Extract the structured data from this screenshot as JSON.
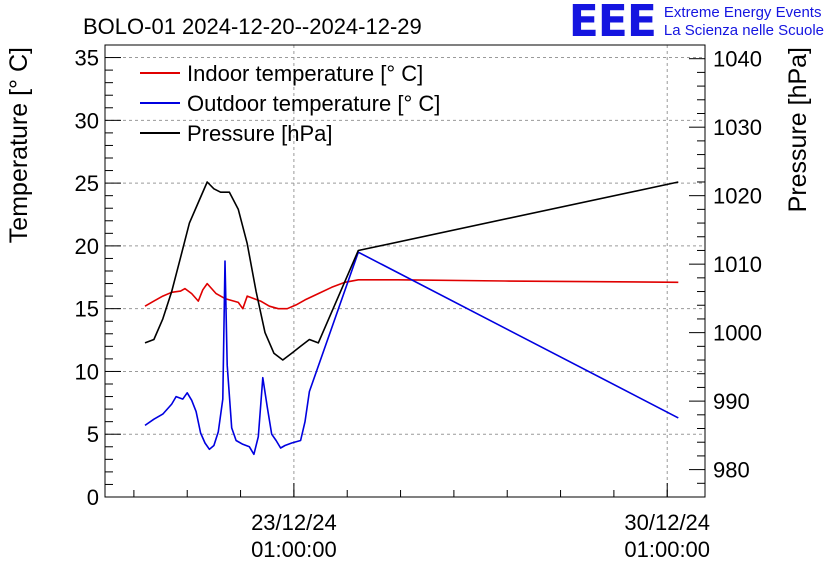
{
  "brand": {
    "logo": "EEE",
    "line1": "Extreme Energy Events",
    "line2": "La Scienza nelle Scuole",
    "color": "#1515e0"
  },
  "chart_data": {
    "type": "line",
    "title": "BOLO-01 2024-12-20--2024-12-29",
    "ylabel": "Temperature [° C]",
    "y2label": "Pressure [hPa]",
    "ylim": [
      0,
      36
    ],
    "y2lim": [
      976,
      1042
    ],
    "yticks": [
      0,
      5,
      10,
      15,
      20,
      25,
      30,
      35
    ],
    "y2ticks": [
      980,
      990,
      1000,
      1010,
      1020,
      1030,
      1040
    ],
    "xlim": [
      "2024-12-19T12:00",
      "2024-12-30T18:00"
    ],
    "xticks": [
      {
        "x": "2024-12-23T01:00",
        "date": "23/12/24",
        "time": "01:00:00"
      },
      {
        "x": "2024-12-30T01:00",
        "date": "30/12/24",
        "time": "01:00:00"
      }
    ],
    "grid": true,
    "legend_position": "top-left",
    "series": [
      {
        "name": "Indoor temperature [° C]",
        "axis": "left",
        "color": "#e00000",
        "points": [
          [
            "2024-12-20T06:00",
            15.2
          ],
          [
            "2024-12-20T10:00",
            15.6
          ],
          [
            "2024-12-20T14:00",
            16.0
          ],
          [
            "2024-12-20T18:00",
            16.3
          ],
          [
            "2024-12-20T22:00",
            16.4
          ],
          [
            "2024-12-21T00:00",
            16.6
          ],
          [
            "2024-12-21T03:00",
            16.2
          ],
          [
            "2024-12-21T06:00",
            15.6
          ],
          [
            "2024-12-21T08:00",
            16.5
          ],
          [
            "2024-12-21T10:00",
            17.0
          ],
          [
            "2024-12-21T14:00",
            16.2
          ],
          [
            "2024-12-21T18:00",
            15.8
          ],
          [
            "2024-12-21T22:00",
            15.6
          ],
          [
            "2024-12-22T00:00",
            15.5
          ],
          [
            "2024-12-22T02:00",
            15.0
          ],
          [
            "2024-12-22T04:00",
            16.0
          ],
          [
            "2024-12-22T07:00",
            15.8
          ],
          [
            "2024-12-22T10:00",
            15.6
          ],
          [
            "2024-12-22T14:00",
            15.2
          ],
          [
            "2024-12-22T18:00",
            15.0
          ],
          [
            "2024-12-22T22:00",
            15.0
          ],
          [
            "2024-12-23T02:00",
            15.3
          ],
          [
            "2024-12-23T06:00",
            15.7
          ],
          [
            "2024-12-23T12:00",
            16.2
          ],
          [
            "2024-12-23T18:00",
            16.7
          ],
          [
            "2024-12-24T00:00",
            17.1
          ],
          [
            "2024-12-24T06:00",
            17.3
          ],
          [
            "2024-12-25T00:00",
            17.3
          ],
          [
            "2024-12-27T00:00",
            17.2
          ],
          [
            "2024-12-30T06:00",
            17.1
          ]
        ]
      },
      {
        "name": "Outdoor temperature [° C]",
        "axis": "left",
        "color": "#0000e0",
        "points": [
          [
            "2024-12-20T06:00",
            5.7
          ],
          [
            "2024-12-20T10:00",
            6.2
          ],
          [
            "2024-12-20T14:00",
            6.6
          ],
          [
            "2024-12-20T18:00",
            7.4
          ],
          [
            "2024-12-20T20:00",
            8.0
          ],
          [
            "2024-12-20T23:00",
            7.8
          ],
          [
            "2024-12-21T01:00",
            8.3
          ],
          [
            "2024-12-21T03:00",
            7.7
          ],
          [
            "2024-12-21T05:00",
            6.8
          ],
          [
            "2024-12-21T07:00",
            5.1
          ],
          [
            "2024-12-21T09:00",
            4.3
          ],
          [
            "2024-12-21T11:00",
            3.8
          ],
          [
            "2024-12-21T13:00",
            4.1
          ],
          [
            "2024-12-21T15:00",
            5.2
          ],
          [
            "2024-12-21T17:00",
            7.8
          ],
          [
            "2024-12-21T18:00",
            18.8
          ],
          [
            "2024-12-21T19:00",
            10.5
          ],
          [
            "2024-12-21T21:00",
            5.5
          ],
          [
            "2024-12-21T23:00",
            4.5
          ],
          [
            "2024-12-22T02:00",
            4.2
          ],
          [
            "2024-12-22T05:00",
            4.0
          ],
          [
            "2024-12-22T07:00",
            3.4
          ],
          [
            "2024-12-22T09:00",
            4.8
          ],
          [
            "2024-12-22T11:00",
            9.5
          ],
          [
            "2024-12-22T13:00",
            7.2
          ],
          [
            "2024-12-22T15:00",
            5.0
          ],
          [
            "2024-12-22T17:00",
            4.5
          ],
          [
            "2024-12-22T19:00",
            3.9
          ],
          [
            "2024-12-22T21:00",
            4.1
          ],
          [
            "2024-12-23T00:00",
            4.3
          ],
          [
            "2024-12-23T04:00",
            4.5
          ],
          [
            "2024-12-23T06:00",
            6.0
          ],
          [
            "2024-12-23T08:00",
            8.4
          ],
          [
            "2024-12-24T06:00",
            19.5
          ],
          [
            "2024-12-30T06:00",
            6.3
          ]
        ]
      },
      {
        "name": "Pressure [hPa]",
        "axis": "right",
        "color": "#000000",
        "points": [
          [
            "2024-12-20T06:00",
            998.5
          ],
          [
            "2024-12-20T10:00",
            999.0
          ],
          [
            "2024-12-20T14:00",
            1002.0
          ],
          [
            "2024-12-20T18:00",
            1006.0
          ],
          [
            "2024-12-20T22:00",
            1011.0
          ],
          [
            "2024-12-21T02:00",
            1016.0
          ],
          [
            "2024-12-21T06:00",
            1019.0
          ],
          [
            "2024-12-21T10:00",
            1022.0
          ],
          [
            "2024-12-21T13:00",
            1021.0
          ],
          [
            "2024-12-21T16:00",
            1020.5
          ],
          [
            "2024-12-21T20:00",
            1020.5
          ],
          [
            "2024-12-22T00:00",
            1018.0
          ],
          [
            "2024-12-22T04:00",
            1013.0
          ],
          [
            "2024-12-22T08:00",
            1006.0
          ],
          [
            "2024-12-22T12:00",
            1000.0
          ],
          [
            "2024-12-22T16:00",
            997.0
          ],
          [
            "2024-12-22T20:00",
            996.0
          ],
          [
            "2024-12-23T00:00",
            997.0
          ],
          [
            "2024-12-23T04:00",
            998.0
          ],
          [
            "2024-12-23T08:00",
            999.0
          ],
          [
            "2024-12-23T12:00",
            998.5
          ],
          [
            "2024-12-24T06:00",
            1012.0
          ],
          [
            "2024-12-30T06:00",
            1022.0
          ]
        ]
      }
    ]
  }
}
